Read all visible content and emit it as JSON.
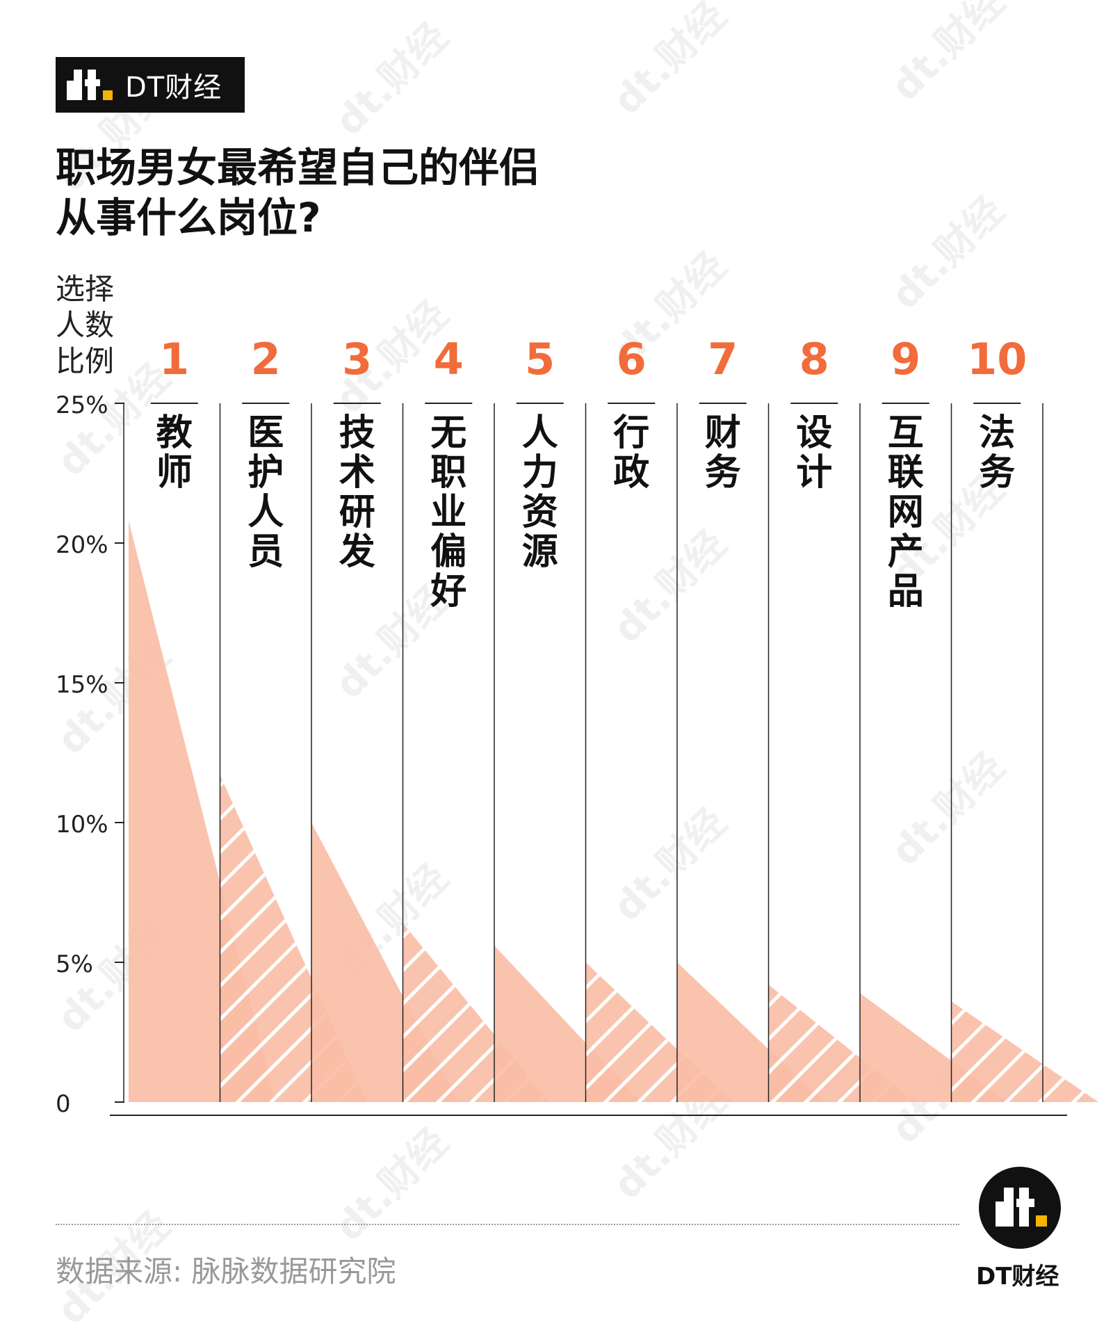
{
  "header": {
    "brand_name": "DT财经",
    "title_lines": [
      "职场男女最希望自己的伴侣",
      "从事什么岗位?"
    ]
  },
  "chart_data": {
    "type": "area",
    "title": "职场男女最希望自己的伴侣从事什么岗位?",
    "ylabel_lines": [
      "选择",
      "人数",
      "比例"
    ],
    "ylim": [
      0,
      25
    ],
    "yticks": [
      0,
      5,
      10,
      15,
      20,
      25
    ],
    "ytick_labels": [
      "0",
      "5%",
      "10%",
      "15%",
      "20%",
      "25%"
    ],
    "ranks": [
      "1",
      "2",
      "3",
      "4",
      "5",
      "6",
      "7",
      "8",
      "9",
      "10"
    ],
    "categories": [
      "教师",
      "医护人员",
      "技术研发",
      "无职业偏好",
      "人力资源",
      "行政",
      "财务",
      "设计",
      "互联网产品",
      "法务"
    ],
    "values": [
      20.8,
      11.7,
      10.0,
      6.4,
      5.6,
      5.0,
      5.0,
      4.2,
      3.9,
      3.6
    ],
    "hatched": [
      false,
      true,
      false,
      true,
      false,
      true,
      false,
      true,
      false,
      true
    ],
    "colors": {
      "fill": "#f9bda5",
      "rank": "#f26b3a",
      "hatch": "#ffffff"
    }
  },
  "footer": {
    "source": "数据来源: 脉脉数据研究院",
    "brand_name": "DT财经"
  },
  "watermark": "dt.财经"
}
